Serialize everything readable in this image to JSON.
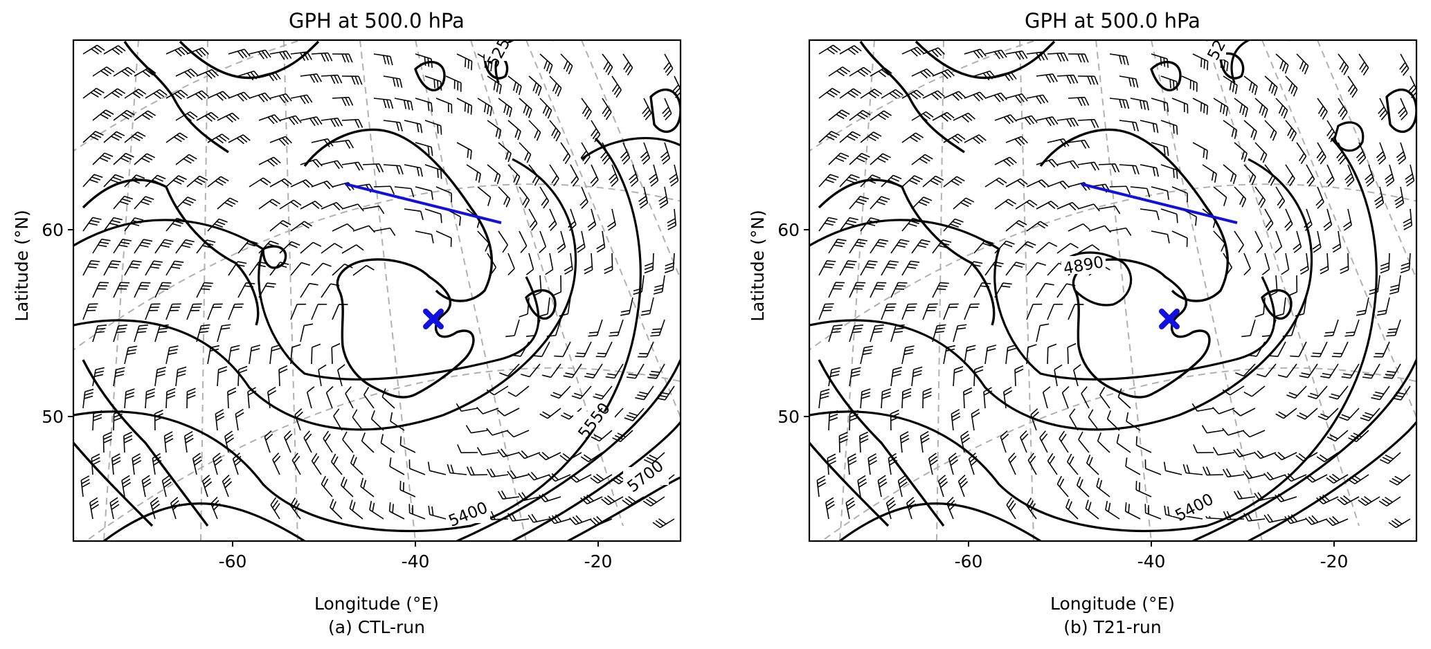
{
  "chart_data": [
    {
      "type": "contour-map",
      "title": "GPH at 500.0 hPa",
      "xlabel": "Longitude (°E)",
      "ylabel": "Latitude (°N)",
      "caption": "(a) CTL-run",
      "xticks": [
        -60,
        -40,
        -20
      ],
      "yticks": [
        60,
        50
      ],
      "contour_labels": [
        "525",
        "5550",
        "5700",
        "5400"
      ],
      "marker": {
        "lon": -38,
        "lat": 55.3,
        "symbol": "X",
        "color": "#1010e0"
      },
      "section_line": {
        "from": [
          -48,
          62.5
        ],
        "to": [
          -30,
          60.5
        ],
        "color": "#1010e0"
      },
      "grid": true
    },
    {
      "type": "contour-map",
      "title": "GPH at 500.0 hPa",
      "xlabel": "Longitude (°E)",
      "ylabel": "Latitude (°N)",
      "caption": "(b) T21-run",
      "xticks": [
        -60,
        -40,
        -20
      ],
      "yticks": [
        60,
        50
      ],
      "contour_labels": [
        "52",
        "4890",
        "5400"
      ],
      "marker": {
        "lon": -38,
        "lat": 55.3,
        "symbol": "X",
        "color": "#1010e0"
      },
      "section_line": {
        "from": [
          -48,
          62.5
        ],
        "to": [
          -30,
          60.5
        ],
        "color": "#1010e0"
      },
      "grid": true
    }
  ]
}
